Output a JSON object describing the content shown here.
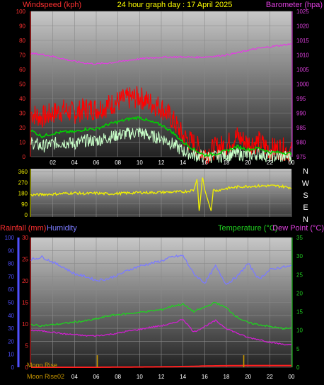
{
  "header": {
    "left_label": "Windspeed (kph)",
    "center_title": "24 hour graph day : 17 April 2025",
    "right_label": "Barometer (hpa)"
  },
  "colors": {
    "windspeed": "#ff0000",
    "gust_avg": "#00d000",
    "wind_min": "#c8ffc8",
    "barometer": "#e040e0",
    "direction": "#f0f000",
    "rainfall": "#ff2020",
    "humidity": "#7b7bff",
    "temperature": "#20d020",
    "dewpoint": "#d020d0",
    "axis_left_top": "#ff3030",
    "axis_right_top": "#e040e0",
    "axis_green": "#20d020",
    "axis_blue": "#5050ff",
    "moonrise": "#c89600"
  },
  "direction_labels": [
    "N",
    "W",
    "S",
    "E",
    "N"
  ],
  "bottom_header": {
    "rainfall_label": "Rainfall (mm)",
    "humidity_label": "Humidity",
    "temperature_label": "Temperature (°C)",
    "dewpoint_label": "Dew Point (°C)"
  },
  "moon": {
    "legend": "Moon Rise",
    "axis_text": "Moon Rise02"
  },
  "chart_data": [
    {
      "id": "wind_baro",
      "type": "line",
      "x_ticks": [
        "02",
        "04",
        "06",
        "08",
        "10",
        "12",
        "14",
        "16",
        "18",
        "20",
        "22",
        "00"
      ],
      "x_hours": [
        0,
        24
      ],
      "y_left": {
        "ticks": [
          0,
          10,
          20,
          30,
          40,
          50,
          60,
          70,
          80,
          90,
          100
        ],
        "ylim": [
          0,
          100
        ]
      },
      "y_right": {
        "ticks": [
          975,
          980,
          985,
          990,
          995,
          1000,
          1005,
          1010,
          1015,
          1020,
          1025
        ],
        "ylim": [
          975,
          1025
        ]
      },
      "grid": true,
      "series": [
        {
          "key": "windspeed",
          "axis": "left",
          "x": [
            0,
            1,
            2,
            3,
            4,
            5,
            6,
            7,
            8,
            9,
            10,
            11,
            12,
            13,
            14,
            15,
            16,
            17,
            18,
            19,
            20,
            21,
            22,
            23,
            24
          ],
          "values": [
            30,
            27,
            30,
            32,
            30,
            33,
            33,
            35,
            38,
            40,
            41,
            37,
            34,
            26,
            14,
            9,
            2,
            6,
            8,
            14,
            9,
            10,
            5,
            6,
            3
          ]
        },
        {
          "key": "gust_avg",
          "axis": "left",
          "x": [
            0,
            1,
            2,
            3,
            4,
            5,
            6,
            7,
            8,
            9,
            10,
            11,
            12,
            13,
            14,
            15,
            16,
            17,
            18,
            19,
            20,
            21,
            22,
            23,
            24
          ],
          "values": [
            18,
            14,
            16,
            17,
            17,
            19,
            19,
            22,
            24,
            26,
            27,
            24,
            22,
            17,
            10,
            5,
            1,
            2,
            4,
            7,
            5,
            6,
            3,
            3,
            2
          ]
        },
        {
          "key": "wind_min",
          "axis": "left",
          "x": [
            0,
            1,
            2,
            3,
            4,
            5,
            6,
            7,
            8,
            9,
            10,
            11,
            12,
            13,
            14,
            15,
            16,
            17,
            18,
            19,
            20,
            21,
            22,
            23,
            24
          ],
          "values": [
            10,
            7,
            9,
            10,
            9,
            11,
            11,
            13,
            15,
            16,
            17,
            14,
            13,
            9,
            4,
            1,
            0,
            0,
            1,
            2,
            1,
            2,
            0,
            0,
            0
          ]
        },
        {
          "key": "barometer",
          "axis": "right",
          "x": [
            0,
            1,
            2,
            3,
            4,
            5,
            6,
            7,
            8,
            9,
            10,
            11,
            12,
            13,
            14,
            15,
            16,
            17,
            18,
            19,
            20,
            21,
            22,
            23,
            24
          ],
          "values": [
            1010.5,
            1010.2,
            1009.5,
            1008.6,
            1007.8,
            1007.2,
            1006.9,
            1007.2,
            1007.6,
            1008.2,
            1008.6,
            1009.0,
            1009.2,
            1009.3,
            1009.3,
            1009.2,
            1009.3,
            1009.6,
            1010.0,
            1010.7,
            1011.6,
            1012.3,
            1012.8,
            1013.3,
            1013.8
          ]
        }
      ]
    },
    {
      "id": "direction",
      "type": "line",
      "x_hours": [
        0,
        24
      ],
      "y_left": {
        "ticks": [
          0,
          90,
          180,
          270,
          360
        ],
        "ylim": [
          0,
          360
        ]
      },
      "grid": true,
      "series": [
        {
          "key": "direction",
          "axis": "left",
          "x": [
            0,
            1,
            2,
            3,
            4,
            5,
            6,
            7,
            8,
            9,
            10,
            11,
            12,
            13,
            14,
            15,
            15.3,
            15.5,
            15.8,
            16,
            16.6,
            16.8,
            17,
            18,
            19,
            20,
            21,
            22,
            23,
            24
          ],
          "values": [
            165,
            170,
            172,
            178,
            182,
            176,
            180,
            175,
            178,
            182,
            186,
            185,
            188,
            190,
            192,
            205,
            300,
            20,
            320,
            210,
            30,
            215,
            200,
            220,
            232,
            238,
            240,
            242,
            238,
            225
          ]
        }
      ]
    },
    {
      "id": "temp_hum_rain",
      "type": "line",
      "x_ticks": [
        "02",
        "04",
        "06",
        "08",
        "10",
        "12",
        "14",
        "16",
        "18",
        "20",
        "22",
        "00"
      ],
      "x_hours": [
        0,
        24
      ],
      "y_hum": {
        "ticks": [
          0,
          10,
          20,
          30,
          40,
          50,
          60,
          70,
          80,
          90,
          100
        ],
        "ylim": [
          0,
          100
        ]
      },
      "y_rain": {
        "ticks": [
          0,
          5,
          10,
          15,
          20,
          25,
          30
        ],
        "ylim": [
          0,
          30
        ]
      },
      "y_temp": {
        "ticks": [
          0,
          5,
          10,
          15,
          20,
          25,
          30,
          35
        ],
        "ylim": [
          0,
          35
        ]
      },
      "grid": true,
      "series": [
        {
          "key": "humidity",
          "axis": "hum",
          "x": [
            0,
            1,
            2,
            3,
            4,
            5,
            6,
            7,
            8,
            9,
            10,
            11,
            12,
            13,
            14,
            15,
            16,
            17,
            18,
            19,
            20,
            21,
            22,
            23,
            24
          ],
          "values": [
            83,
            85,
            81,
            77,
            72,
            70,
            67,
            68,
            71,
            75,
            78,
            80,
            82,
            85,
            86,
            72,
            65,
            78,
            64,
            70,
            80,
            68,
            75,
            77,
            78
          ]
        },
        {
          "key": "temperature",
          "axis": "temp",
          "x": [
            0,
            1,
            2,
            3,
            4,
            5,
            6,
            7,
            8,
            9,
            10,
            11,
            12,
            13,
            14,
            15,
            16,
            17,
            18,
            19,
            20,
            21,
            22,
            23,
            24
          ],
          "values": [
            11.5,
            11.2,
            11.5,
            11.8,
            12.2,
            12.5,
            13,
            13.8,
            14.2,
            14.5,
            14.8,
            15.2,
            15.5,
            16.5,
            17,
            15,
            16.2,
            17.5,
            16,
            13.5,
            12,
            11.5,
            11,
            10.5,
            10.5
          ]
        },
        {
          "key": "dewpoint",
          "axis": "temp",
          "x": [
            0,
            1,
            2,
            3,
            4,
            5,
            6,
            7,
            8,
            9,
            10,
            11,
            12,
            13,
            14,
            15,
            16,
            17,
            18,
            19,
            20,
            21,
            22,
            23,
            24
          ],
          "values": [
            10,
            9.8,
            9.5,
            9,
            8.8,
            8.5,
            8.5,
            8.8,
            9.2,
            9.8,
            10.2,
            10.8,
            11.2,
            11.8,
            13,
            9.5,
            11,
            12.6,
            10.5,
            9.2,
            8,
            7.5,
            6.8,
            6.3,
            6
          ]
        },
        {
          "key": "rainfall",
          "axis": "rain",
          "x": [
            0,
            6,
            12,
            15,
            16,
            20,
            24
          ],
          "values": [
            0,
            0,
            0.1,
            0.2,
            0.3,
            0.4,
            0.4
          ]
        }
      ],
      "moon_rise_hours": [
        6.1,
        19.6
      ]
    }
  ]
}
